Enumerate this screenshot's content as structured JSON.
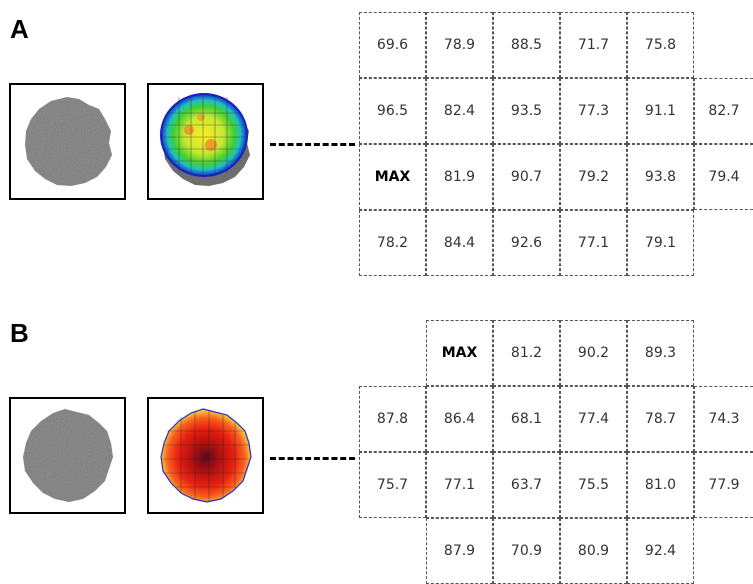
{
  "panels": [
    {
      "label": "A",
      "grid": [
        [
          "69.6",
          "78.9",
          "88.5",
          "71.7",
          "75.8",
          ""
        ],
        [
          "96.5",
          "82.4",
          "93.5",
          "77.3",
          "91.1",
          "82.7"
        ],
        [
          "MAX",
          "81.9",
          "90.7",
          "79.2",
          "93.8",
          "79.4"
        ],
        [
          "78.2",
          "84.4",
          "92.6",
          "77.1",
          "79.1",
          ""
        ]
      ],
      "heatmap": "green-yellow-blue"
    },
    {
      "label": "B",
      "grid": [
        [
          "",
          "MAX",
          "81.2",
          "90.2",
          "89.3",
          ""
        ],
        [
          "87.8",
          "86.4",
          "68.1",
          "77.4",
          "78.7",
          "74.3"
        ],
        [
          "75.7",
          "77.1",
          "63.7",
          "75.5",
          "81.0",
          "77.9"
        ],
        [
          "",
          "87.9",
          "70.9",
          "80.9",
          "92.4",
          ""
        ]
      ],
      "heatmap": "red-yellow"
    }
  ]
}
